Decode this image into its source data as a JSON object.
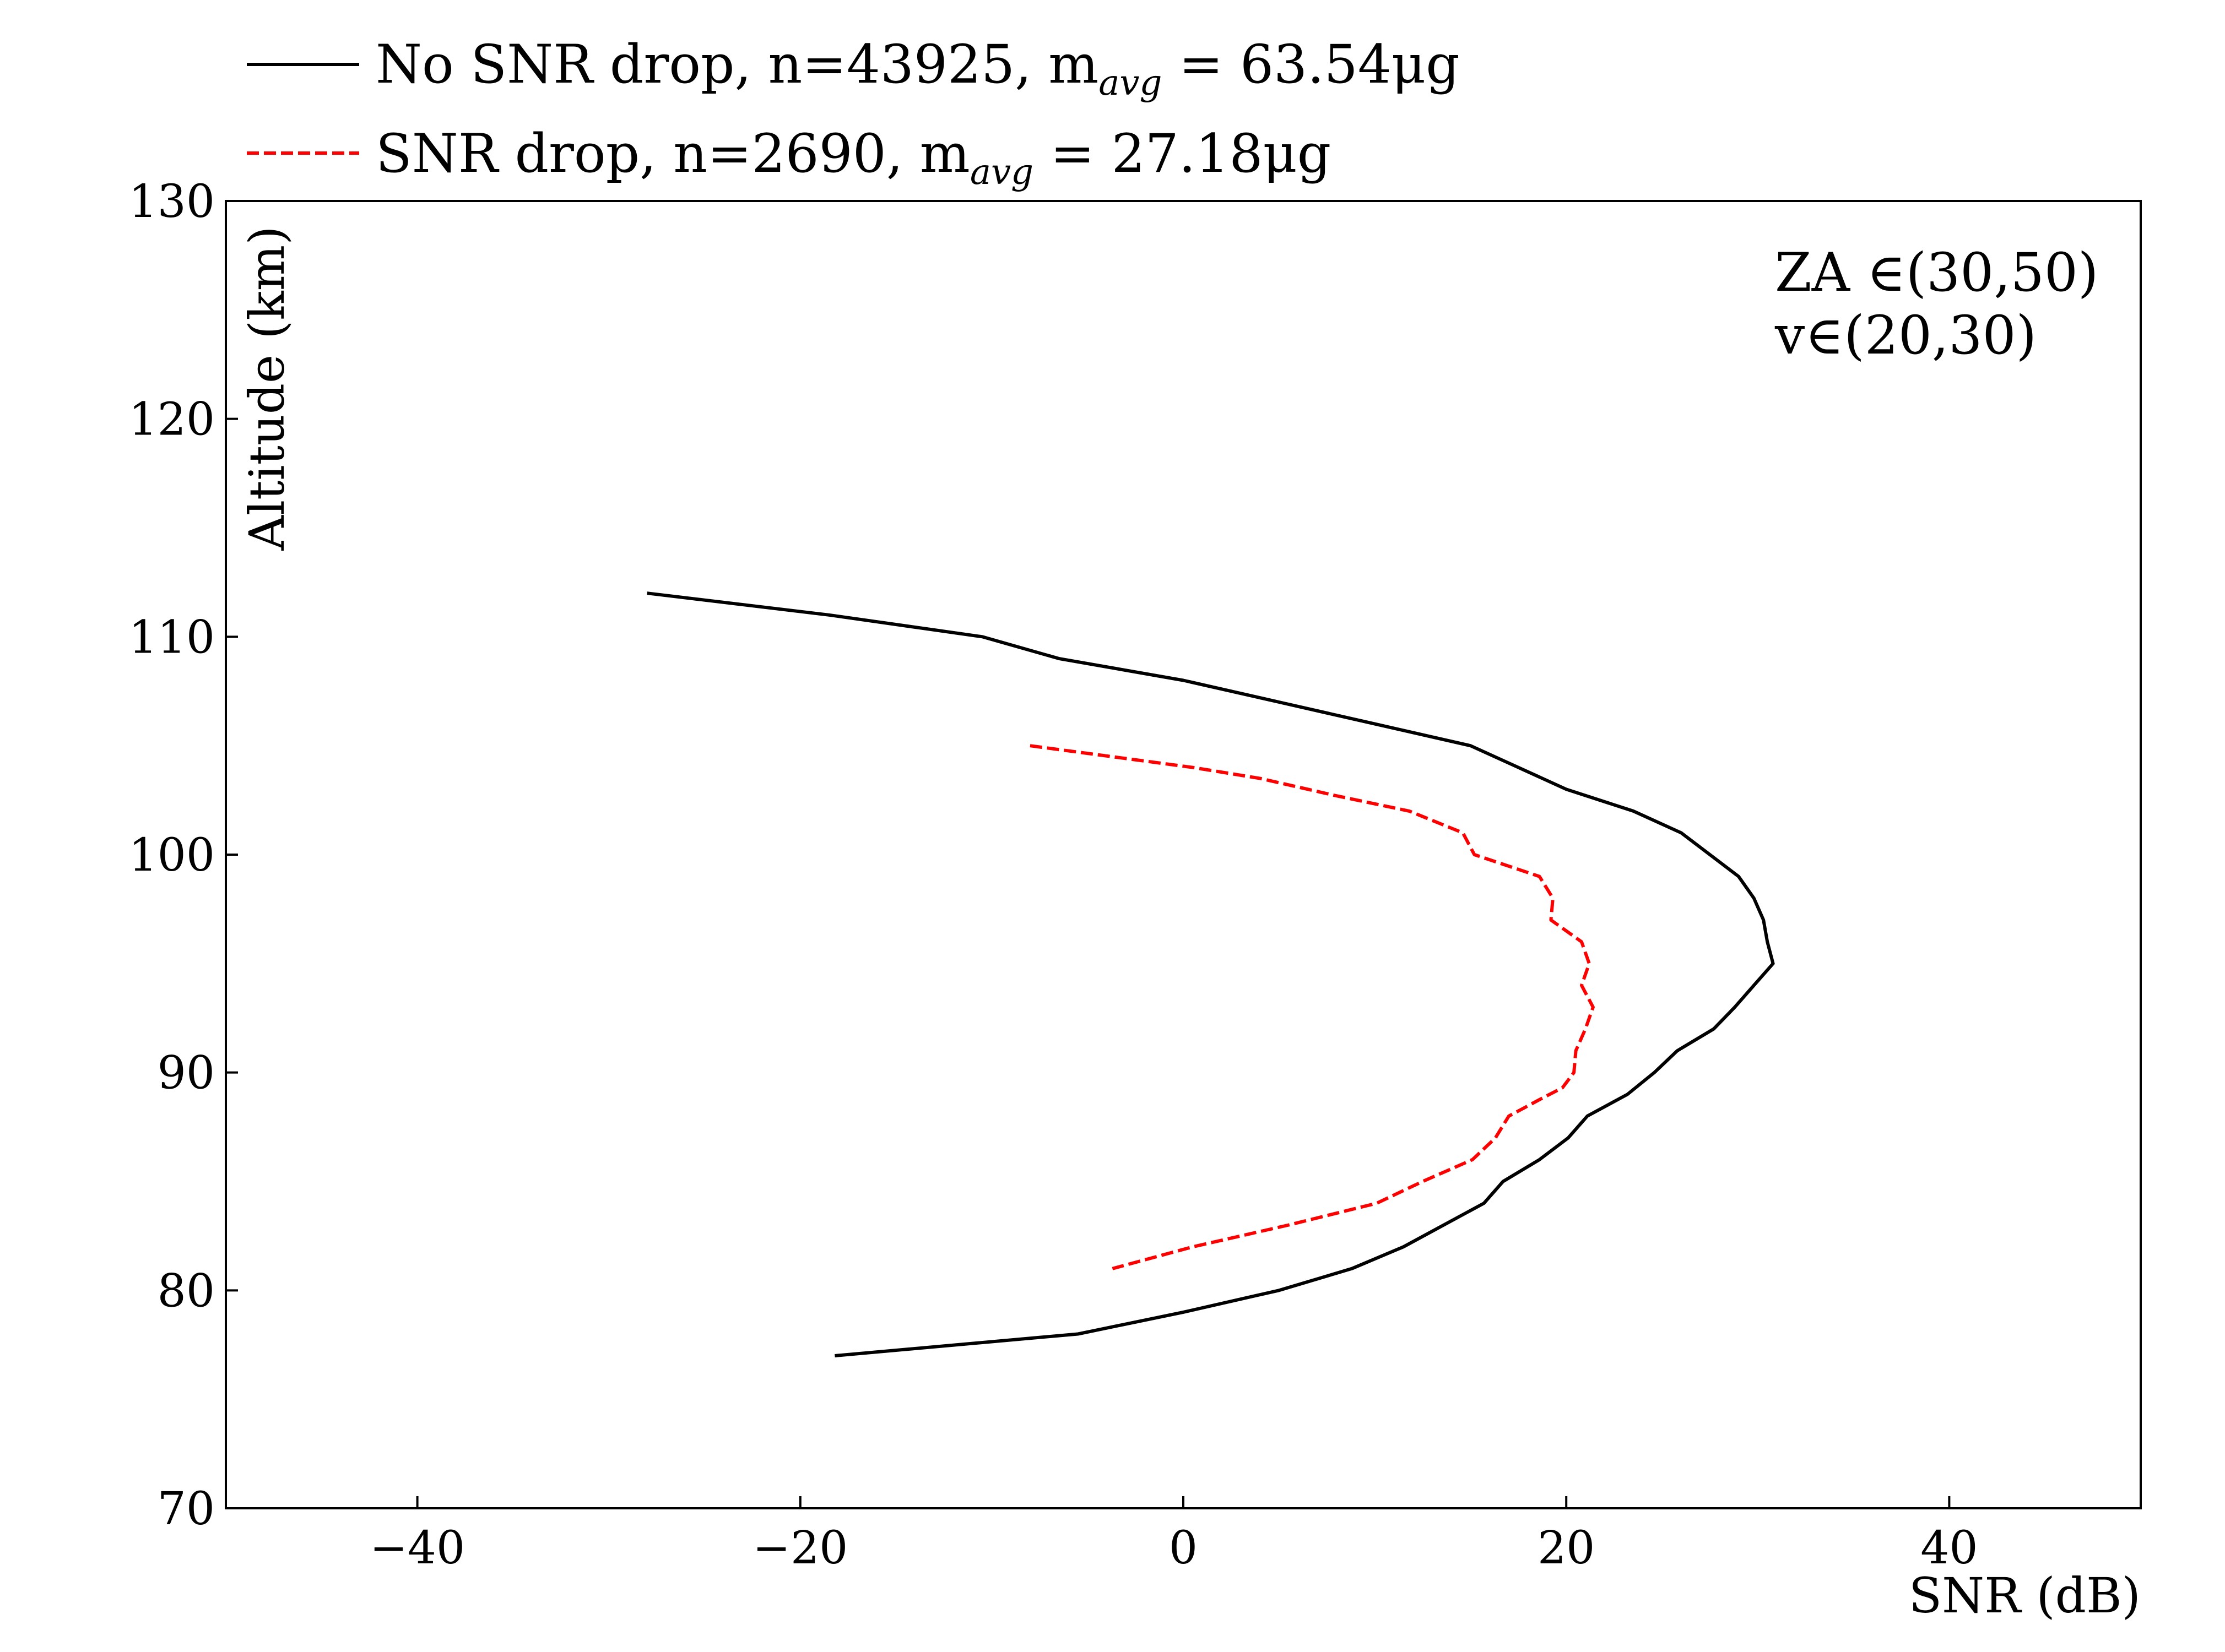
{
  "chart_data": {
    "type": "line",
    "xlabel": "SNR (dB)",
    "ylabel": "Altitude (km)",
    "xlim": [
      -50,
      50
    ],
    "ylim": [
      70,
      130
    ],
    "xticks": [
      -40,
      -20,
      0,
      20,
      40
    ],
    "xtick_labels": [
      "−40",
      "−20",
      "0",
      "20",
      "40"
    ],
    "yticks": [
      70,
      80,
      90,
      100,
      110,
      120,
      130
    ],
    "ytick_labels": [
      "70",
      "80",
      "90",
      "100",
      "110",
      "120",
      "130"
    ],
    "grid": false,
    "legend_position": "above plot, top-left",
    "series": [
      {
        "legend": {
          "prefix": "No SNR drop,  n=43925,  m",
          "sub": "avg",
          "suffix": " = 63.54μg"
        },
        "color": "#000000",
        "dash": "solid",
        "x": [
          -28,
          -18.5,
          -10.5,
          -6.5,
          0,
          5,
          10,
          15,
          17.5,
          20,
          23.5,
          26,
          27.5,
          29,
          29.8,
          30.3,
          30.5,
          30.8,
          29.8,
          28.8,
          27.7,
          25.8,
          24.6,
          23.2,
          21.1,
          20.1,
          18.6,
          16.7,
          15.7,
          11.5,
          8.8,
          5.0,
          0,
          -5.5,
          -18.2
        ],
        "y": [
          112,
          111,
          110,
          109,
          108,
          107,
          106,
          105,
          104,
          103,
          102,
          101,
          100,
          99,
          98,
          97,
          96,
          95,
          94,
          93,
          92,
          91,
          90,
          89,
          88,
          87,
          86,
          85,
          84,
          82,
          81,
          80,
          79,
          78,
          77
        ]
      },
      {
        "legend": {
          "prefix": "SNR drop,  n=2690,  m",
          "sub": "avg",
          "suffix": " = 27.18μg"
        },
        "color": "#ff0000",
        "dash": "dashed",
        "x": [
          -8,
          0.5,
          4,
          8,
          11.8,
          14.6,
          15.2,
          18.6,
          19.3,
          19.2,
          20.8,
          21.2,
          20.8,
          21.4,
          21.0,
          20.5,
          20.4,
          19.8,
          18.7,
          17.0,
          16.3,
          15.1,
          12.5,
          10.1,
          5.5,
          0.5,
          -3.7
        ],
        "y": [
          105,
          104,
          103.5,
          102.7,
          102,
          101,
          100,
          99,
          98,
          97,
          96,
          95,
          94,
          93,
          92,
          91,
          90,
          89.3,
          88.8,
          88,
          87,
          86,
          85,
          84,
          83,
          82,
          81
        ]
      }
    ],
    "annotations": [
      "ZA ∈(30,50)",
      "v∈(20,30)"
    ]
  }
}
